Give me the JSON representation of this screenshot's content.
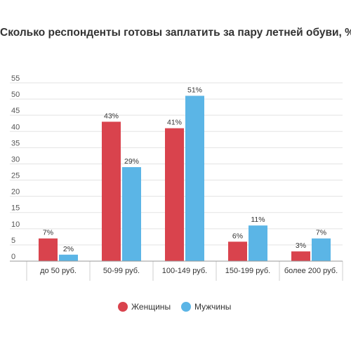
{
  "chart_data": {
    "type": "bar",
    "title": "Сколько респонденты готовы заплатить за пару летней обуви, %",
    "categories": [
      "до 50 руб.",
      "50-99 руб.",
      "100-149 руб.",
      "150-199 руб.",
      "более 200 руб."
    ],
    "series": [
      {
        "name": "Женщины",
        "values": [
          7,
          43,
          41,
          6,
          3
        ],
        "labels": [
          "7%",
          "43%",
          "41%",
          "6%",
          "3%"
        ],
        "color": "#d9434d"
      },
      {
        "name": "Мужчины",
        "values": [
          2,
          29,
          51,
          11,
          7
        ],
        "labels": [
          "2%",
          "29%",
          "51%",
          "11%",
          "7%"
        ],
        "color": "#5bb5e6"
      }
    ],
    "ylim": [
      0,
      55
    ],
    "yticks": [
      0,
      5,
      10,
      15,
      20,
      25,
      30,
      35,
      40,
      45,
      50,
      55
    ],
    "grid": true,
    "legend": "bottom"
  }
}
